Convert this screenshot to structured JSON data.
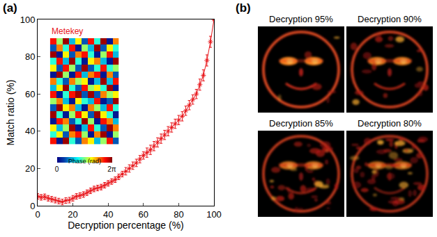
{
  "chart_data": {
    "type": "scatter",
    "panel_label": "(a)",
    "x_label": "Decryption percentage (%)",
    "y_label": "Match ratio (%)",
    "x": [
      0,
      2,
      4,
      6,
      8,
      10,
      12,
      14,
      16,
      18,
      20,
      22,
      24,
      26,
      28,
      30,
      32,
      34,
      36,
      38,
      40,
      42,
      44,
      46,
      48,
      50,
      52,
      54,
      56,
      58,
      60,
      62,
      64,
      66,
      68,
      70,
      72,
      74,
      76,
      78,
      80,
      82,
      84,
      86,
      88,
      90,
      92,
      94,
      96,
      98,
      100
    ],
    "series": [
      {
        "color": "#e8161b",
        "marker": "asterisk",
        "line_style": "solid",
        "values": [
          5,
          4.5,
          4.8,
          4,
          3.5,
          3,
          2.5,
          2,
          2.8,
          3,
          4,
          5,
          5.5,
          6,
          7,
          8,
          9,
          9.5,
          10,
          11,
          12,
          13,
          14,
          15.5,
          17,
          18.5,
          20,
          21.5,
          23,
          25,
          27,
          28.5,
          30,
          32,
          34,
          36,
          38,
          40,
          42,
          44,
          46,
          48,
          51,
          54,
          57,
          60,
          65,
          70,
          78,
          88,
          100
        ],
        "errors": [
          1.5,
          1.5,
          1.5,
          1.5,
          1.5,
          1.5,
          1.5,
          1.5,
          1.5,
          1.5,
          1.5,
          1.5,
          1.5,
          1.5,
          1.5,
          1.5,
          1.5,
          1.5,
          1.5,
          1.5,
          1.5,
          1.5,
          1.5,
          1.5,
          1.5,
          2,
          2,
          2,
          2,
          2,
          2,
          2.5,
          2.5,
          2.5,
          2.5,
          2.5,
          2.5,
          2.5,
          2.5,
          2.5,
          2.5,
          2.5,
          2.5,
          2.5,
          2.5,
          2.5,
          3,
          3,
          3,
          3,
          0
        ]
      }
    ],
    "xlim": [
      0,
      100
    ],
    "xticks": [
      0,
      20,
      40,
      60,
      80,
      100
    ],
    "ylim": [
      0,
      100
    ],
    "yticks": [
      0,
      20,
      40,
      60,
      80,
      100
    ],
    "grid": false,
    "inset": {
      "type": "heatmap",
      "title": "Metekey",
      "title_color": "#e8161b",
      "colorbar_label": "Phase (rad)",
      "colorbar_range": [
        0,
        6.283
      ],
      "colorbar_ticks": [
        0,
        {
          "value": 6.283,
          "label": "2π"
        }
      ],
      "cells": [
        [
          5.4,
          3.3,
          6.1,
          1.8,
          4.0,
          1.0,
          5.4,
          2.6,
          6.1,
          0.3,
          4.7
        ],
        [
          1.0,
          4.7,
          2.6,
          5.4,
          0.3,
          3.3,
          1.8,
          6.1,
          1.0,
          4.0,
          2.6
        ],
        [
          6.1,
          0.3,
          4.0,
          1.0,
          4.7,
          5.4,
          2.6,
          0.3,
          3.3,
          5.4,
          1.8
        ],
        [
          2.6,
          5.4,
          1.8,
          6.1,
          2.6,
          0.3,
          4.0,
          4.7,
          1.8,
          0.3,
          6.1
        ],
        [
          4.0,
          1.0,
          5.4,
          3.3,
          1.0,
          6.1,
          1.0,
          2.6,
          5.4,
          2.6,
          3.3
        ],
        [
          0.3,
          6.1,
          3.3,
          0.3,
          5.4,
          1.8,
          4.7,
          5.4,
          0.3,
          4.7,
          1.0
        ],
        [
          4.7,
          2.6,
          1.0,
          4.7,
          3.3,
          4.0,
          0.3,
          1.8,
          6.1,
          1.8,
          5.4
        ],
        [
          1.8,
          4.0,
          6.1,
          2.6,
          1.0,
          5.4,
          3.3,
          4.0,
          2.6,
          6.1,
          0.3
        ],
        [
          5.4,
          0.3,
          2.6,
          5.4,
          6.1,
          1.0,
          6.1,
          1.0,
          4.7,
          3.3,
          4.0
        ],
        [
          3.3,
          4.7,
          1.8,
          0.3,
          4.0,
          2.6,
          1.8,
          5.4,
          0.3,
          1.0,
          6.1
        ],
        [
          1.0,
          6.1,
          4.0,
          4.7,
          1.8,
          0.3,
          4.7,
          3.3,
          1.8,
          5.4,
          2.6
        ],
        [
          6.1,
          2.6,
          0.3,
          3.3,
          5.4,
          4.0,
          1.0,
          6.1,
          4.0,
          2.6,
          0.3
        ],
        [
          0.3,
          5.4,
          4.7,
          1.0,
          2.6,
          6.1,
          3.3,
          0.3,
          5.4,
          4.7,
          1.8
        ],
        [
          4.0,
          1.8,
          3.3,
          6.1,
          0.3,
          1.8,
          5.4,
          2.6,
          1.0,
          6.1,
          4.7
        ],
        [
          2.6,
          4.0,
          1.0,
          4.7,
          5.4,
          3.3,
          0.3,
          4.7,
          6.1,
          0.3,
          3.3
        ],
        [
          5.4,
          0.3,
          6.1,
          2.6,
          1.0,
          4.7,
          4.0,
          1.8,
          3.3,
          5.4,
          1.0
        ]
      ]
    }
  },
  "images": {
    "panel_label": "(b)",
    "titles": [
      "Decryption 95%",
      "Decryption 90%",
      "Decryption 85%",
      "Decryption 80%"
    ]
  }
}
